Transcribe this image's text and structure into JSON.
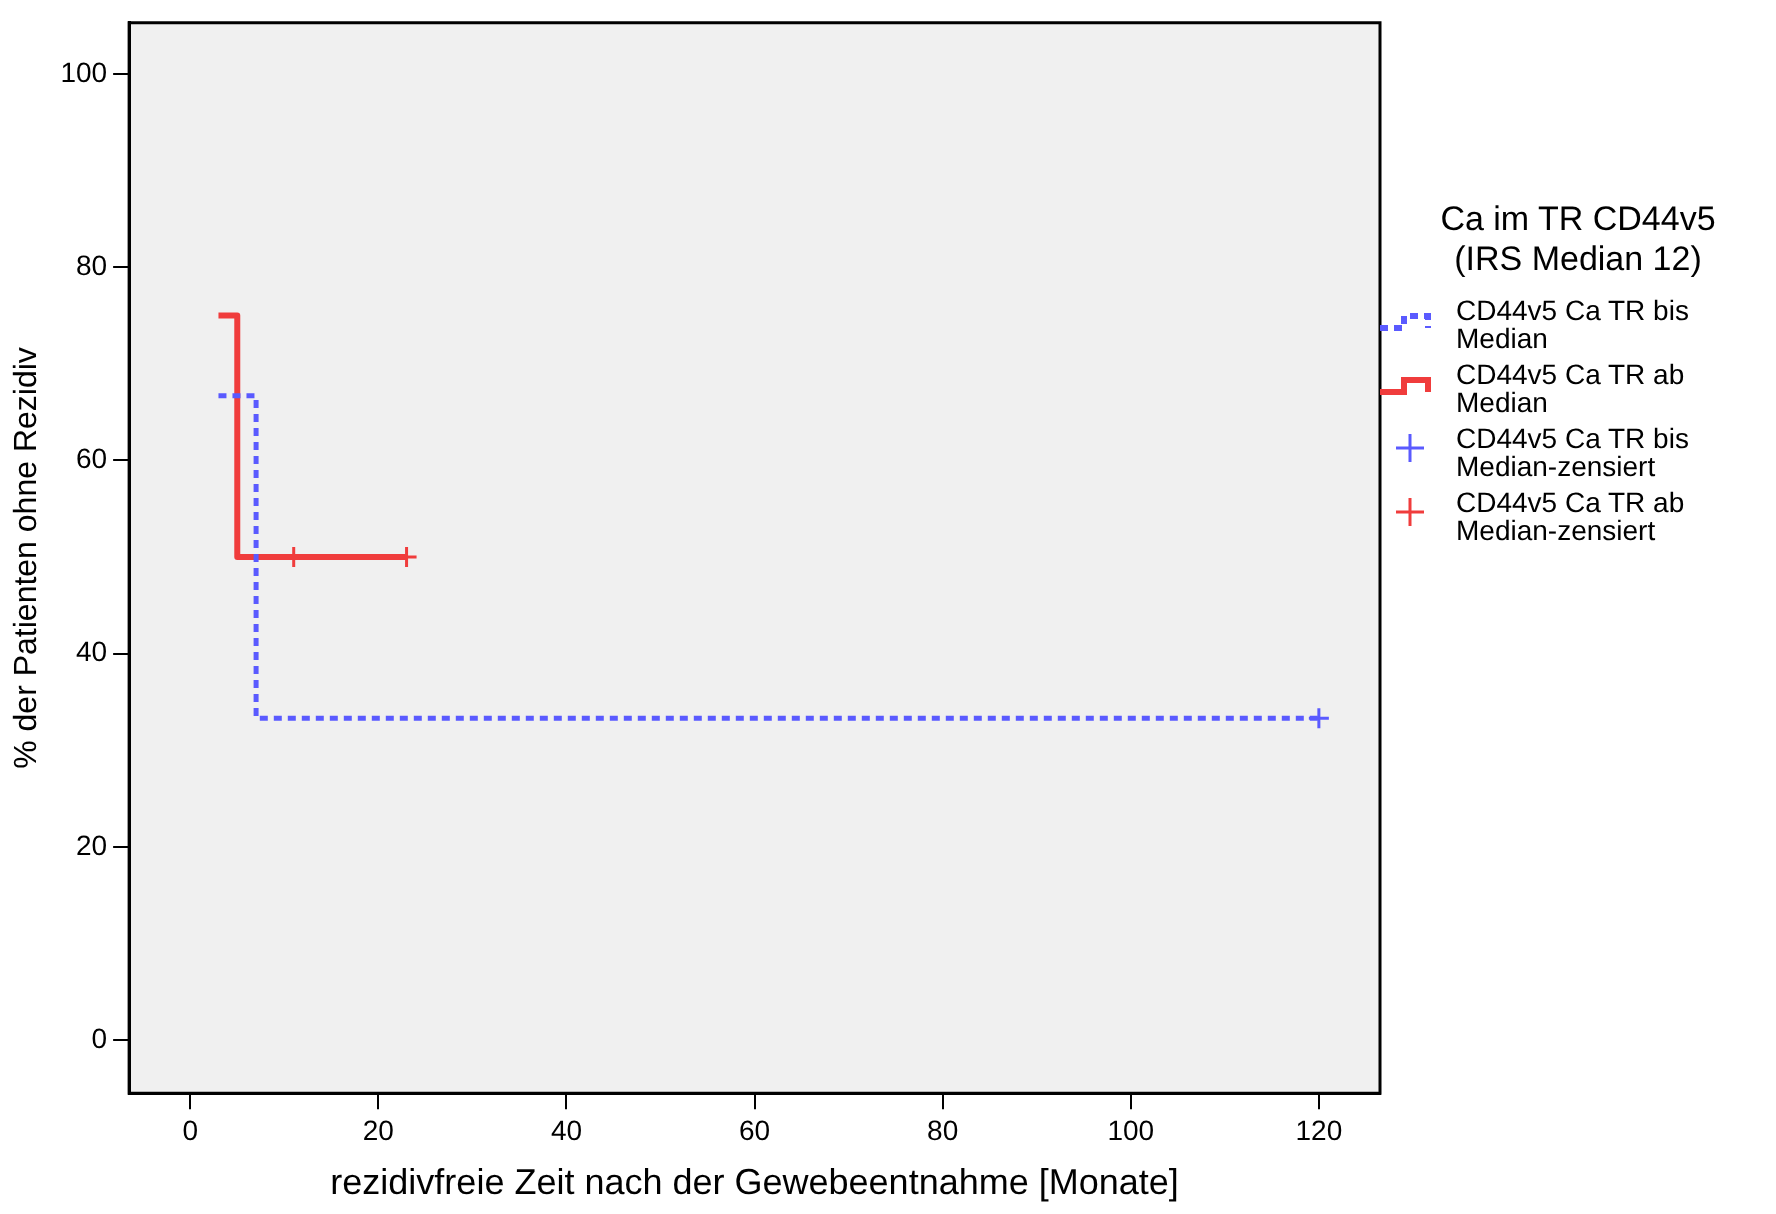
{
  "chart_data": {
    "type": "step",
    "xlabel": "rezidivfreie Zeit nach der Gewebeentnahme [Monate]",
    "ylabel": "% der Patienten ohne Rezidiv",
    "legend_title": "Ca im TR CD44v5\n(IRS Median 12)",
    "legend": "right",
    "grid": false,
    "xlim": [
      -6.5,
      126.5
    ],
    "xticks": [
      0,
      20,
      40,
      60,
      80,
      100,
      120
    ],
    "ylim": [
      -5.5,
      105.3
    ],
    "yticks": [
      0,
      20,
      40,
      60,
      80,
      100
    ],
    "series": [
      {
        "name": "CD44v5 Ca TR bis Median",
        "color": "#5a5aff",
        "line_style": "dotted",
        "x": [
          3,
          7,
          120
        ],
        "values": [
          66.7,
          33.3,
          33.3
        ]
      },
      {
        "name": "CD44v5 Ca TR ab Median",
        "color": "#f03c3c",
        "line_style": "solid",
        "x": [
          3,
          5,
          23
        ],
        "values": [
          75,
          50,
          50
        ]
      },
      {
        "name": "CD44v5 Ca TR bis Median-zensiert",
        "type": "scatter",
        "color": "#5a5aff",
        "marker": "cross",
        "x": [
          120
        ],
        "values": [
          33.3
        ]
      },
      {
        "name": "CD44v5 Ca TR ab Median-zensiert",
        "type": "scatter",
        "color": "#f03c3c",
        "marker": "cross",
        "x": [
          11,
          23
        ],
        "values": [
          50,
          50
        ]
      }
    ]
  }
}
